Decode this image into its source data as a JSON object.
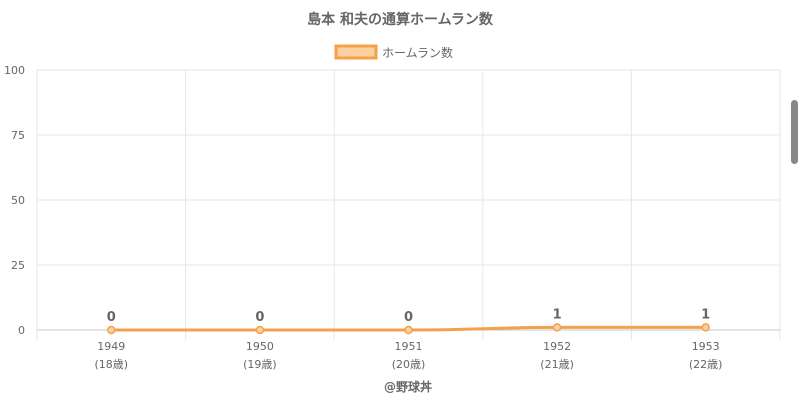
{
  "chart_data": {
    "type": "line",
    "title": "島本 和夫の通算ホームラン数",
    "legend": {
      "position": "top-center"
    },
    "categories": [
      "1949",
      "1950",
      "1951",
      "1952",
      "1953"
    ],
    "sublabels": [
      "(18歳)",
      "(19歳)",
      "(20歳)",
      "(21歳)",
      "(22歳)"
    ],
    "series": [
      {
        "name": "ホームラン数",
        "values": [
          0,
          0,
          0,
          1,
          1
        ],
        "color": "#f5a04a",
        "fill": "#fbd0a0"
      }
    ],
    "data_labels": [
      "0",
      "0",
      "0",
      "1",
      "1"
    ],
    "ylim": [
      0,
      100
    ],
    "yticks": [
      0,
      25,
      50,
      75,
      100
    ],
    "grid": true
  },
  "footer": {
    "credit": "@野球丼"
  }
}
